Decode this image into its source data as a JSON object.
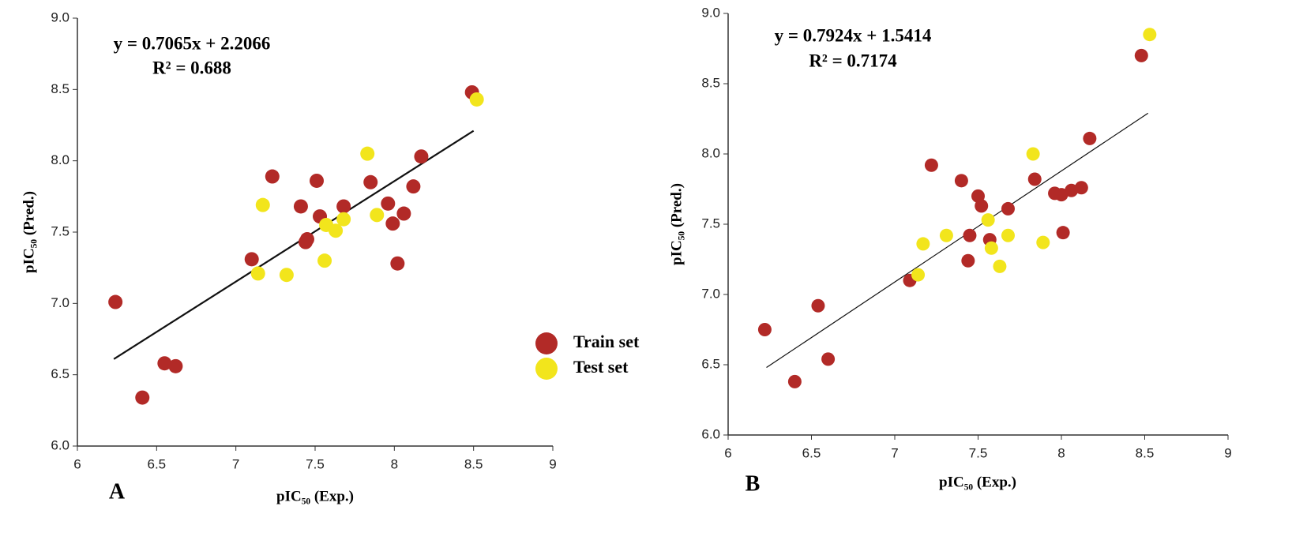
{
  "chart_data": [
    {
      "type": "scatter",
      "panel": "A",
      "equation": "y = 0.7065x + 2.2066",
      "r2": "R² = 0.688",
      "x_label": "pIC₅₀ (Exp.)",
      "y_label": "pIC₅₀ (Pred.)",
      "legend": "right",
      "xlim": [
        6,
        9
      ],
      "ylim": [
        6,
        9
      ],
      "xticks": [
        6,
        6.5,
        7,
        7.5,
        8,
        8.5,
        9
      ],
      "yticks": [
        {
          "value": 6,
          "label": "6.0"
        },
        {
          "value": 6.5,
          "label": "6.5"
        },
        {
          "value": 7,
          "label": "7.0"
        },
        {
          "value": 7.5,
          "label": "7.5"
        },
        {
          "value": 8,
          "label": "8.0"
        },
        {
          "value": 8.5,
          "label": "8.5"
        },
        {
          "value": 9,
          "label": "9.0"
        }
      ],
      "series": [
        {
          "name": "Train set",
          "color": "#b22a27",
          "x": [
            6.24,
            6.55,
            6.62,
            6.41,
            7.1,
            7.23,
            7.41,
            7.45,
            7.44,
            7.51,
            7.53,
            7.68,
            7.85,
            7.96,
            7.99,
            8.06,
            8.02,
            8.12,
            8.17,
            8.49
          ],
          "values": [
            7.01,
            6.58,
            6.56,
            6.34,
            7.31,
            7.89,
            7.68,
            7.45,
            7.43,
            7.86,
            7.61,
            7.68,
            7.85,
            7.7,
            7.56,
            7.63,
            7.28,
            7.82,
            8.03,
            8.48
          ]
        },
        {
          "name": "Test set",
          "color": "#f2e51c",
          "x": [
            7.17,
            7.14,
            7.32,
            7.56,
            7.57,
            7.63,
            7.68,
            7.83,
            7.89,
            8.52
          ],
          "values": [
            7.69,
            7.21,
            7.2,
            7.3,
            7.55,
            7.51,
            7.59,
            8.05,
            7.62,
            8.43
          ]
        }
      ],
      "trendline": {
        "x": [
          6.23,
          8.5
        ],
        "y": [
          6.61,
          8.21
        ]
      }
    },
    {
      "type": "scatter",
      "panel": "B",
      "equation": "y = 0.7924x + 1.5414",
      "r2": "R² = 0.7174",
      "x_label": "pIC₅₀ (Exp.)",
      "y_label": "pIC₅₀ (Pred.)",
      "xlim": [
        6,
        9
      ],
      "ylim": [
        6,
        9
      ],
      "xticks": [
        6,
        6.5,
        7,
        7.5,
        8,
        8.5,
        9
      ],
      "yticks": [
        {
          "value": 6,
          "label": "6.0"
        },
        {
          "value": 6.5,
          "label": "6.5"
        },
        {
          "value": 7,
          "label": "7.0"
        },
        {
          "value": 7.5,
          "label": "7.5"
        },
        {
          "value": 8,
          "label": "8.0"
        },
        {
          "value": 8.5,
          "label": "8.5"
        },
        {
          "value": 9,
          "label": "9.0"
        }
      ],
      "series": [
        {
          "color": "#b22a27",
          "x": [
            6.22,
            6.4,
            6.54,
            6.6,
            7.09,
            7.22,
            7.4,
            7.5,
            7.52,
            7.45,
            7.44,
            7.57,
            7.68,
            7.84,
            7.96,
            8.0,
            8.06,
            8.12,
            8.01,
            8.17,
            8.48
          ],
          "values": [
            6.75,
            6.38,
            6.92,
            6.54,
            7.1,
            7.92,
            7.81,
            7.7,
            7.63,
            7.42,
            7.24,
            7.39,
            7.61,
            7.82,
            7.72,
            7.71,
            7.74,
            7.76,
            7.44,
            8.11,
            8.7
          ]
        },
        {
          "color": "#f2e51c",
          "x": [
            7.14,
            7.17,
            7.31,
            7.56,
            7.58,
            7.63,
            7.68,
            7.83,
            7.89,
            8.53
          ],
          "values": [
            7.14,
            7.36,
            7.42,
            7.53,
            7.33,
            7.2,
            7.42,
            8.0,
            7.37,
            8.85
          ]
        }
      ],
      "trendline": {
        "x": [
          6.23,
          8.52
        ],
        "y": [
          6.48,
          8.29
        ]
      }
    }
  ]
}
